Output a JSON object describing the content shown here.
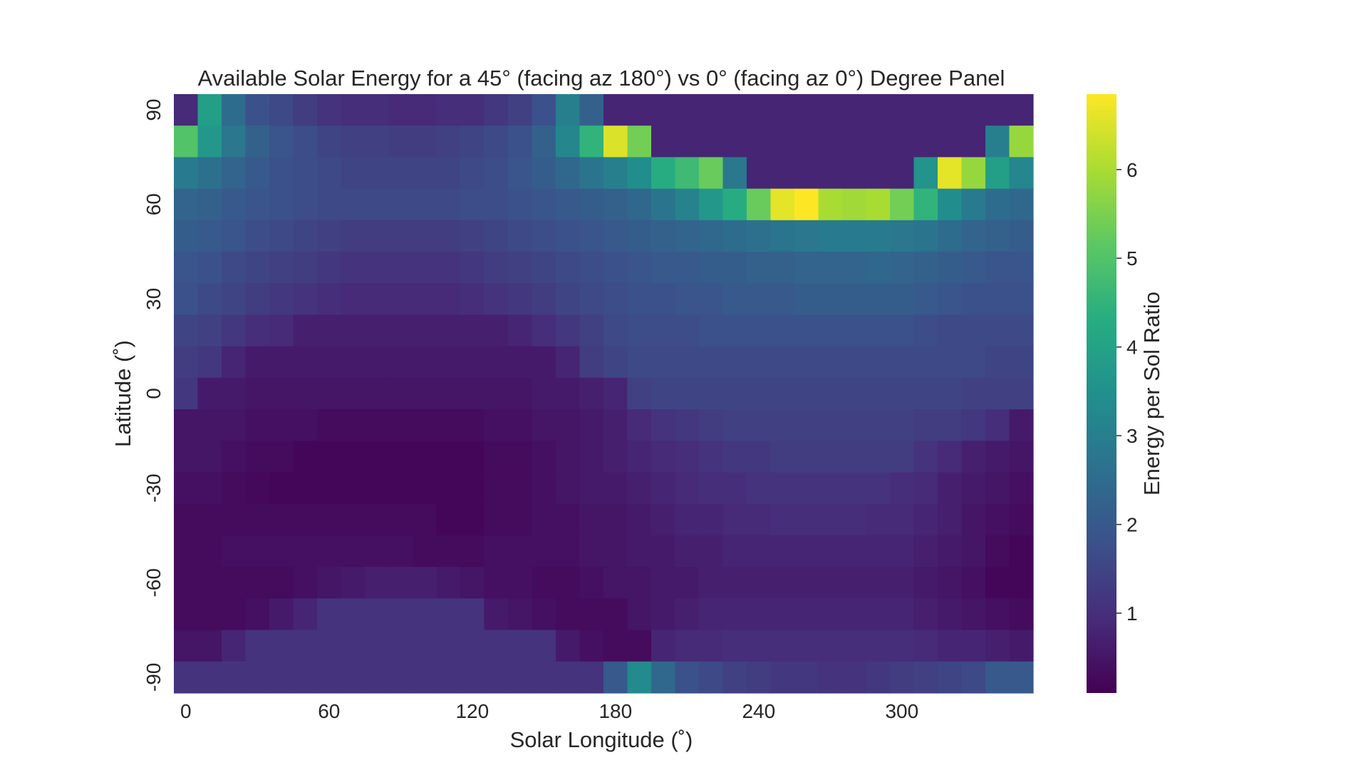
{
  "chart_data": {
    "type": "heatmap",
    "title": "Available Solar Energy for a 45° (facing az 180°) vs 0° (facing az 0°) Degree Panel",
    "xlabel": "Solar Longitude (˚)",
    "ylabel": "Latitude (˚)",
    "colorbar_label": "Energy per Sol Ratio",
    "colormap": "viridis",
    "color_range": [
      0.1,
      6.85
    ],
    "x_ticks": [
      0,
      60,
      120,
      180,
      240,
      300
    ],
    "y_ticks": [
      90,
      60,
      30,
      0,
      -30,
      -60,
      -90
    ],
    "colorbar_ticks": [
      1,
      2,
      3,
      4,
      5,
      6
    ],
    "x": [
      0,
      10,
      20,
      30,
      40,
      50,
      60,
      70,
      80,
      90,
      100,
      110,
      120,
      130,
      140,
      150,
      160,
      170,
      180,
      190,
      200,
      210,
      220,
      230,
      240,
      250,
      260,
      270,
      280,
      290,
      300,
      310,
      320,
      330,
      340,
      350
    ],
    "y": [
      90,
      80,
      70,
      60,
      50,
      40,
      30,
      20,
      10,
      0,
      -10,
      -20,
      -30,
      -40,
      -50,
      -60,
      -70,
      -80,
      -90
    ],
    "z": [
      [
        0.9,
        3.9,
        2.5,
        1.8,
        1.6,
        1.3,
        1.1,
        1.0,
        1.0,
        0.9,
        0.9,
        1.0,
        1.0,
        1.2,
        1.4,
        1.8,
        3.0,
        2.2,
        0.8,
        0.8,
        0.8,
        0.8,
        0.8,
        0.8,
        0.8,
        0.8,
        0.8,
        0.8,
        0.8,
        0.8,
        0.8,
        0.8,
        0.8,
        0.8,
        0.8,
        0.8
      ],
      [
        5.0,
        3.7,
        2.8,
        2.2,
        1.9,
        1.7,
        1.5,
        1.4,
        1.4,
        1.3,
        1.3,
        1.4,
        1.5,
        1.6,
        1.8,
        2.2,
        3.2,
        4.5,
        6.5,
        5.4,
        0.8,
        0.8,
        0.8,
        0.8,
        0.8,
        0.8,
        0.8,
        0.8,
        0.8,
        0.8,
        0.8,
        0.8,
        0.8,
        0.8,
        3.0,
        5.8
      ],
      [
        2.9,
        2.6,
        2.3,
        2.0,
        1.8,
        1.7,
        1.6,
        1.5,
        1.5,
        1.5,
        1.5,
        1.5,
        1.6,
        1.7,
        1.9,
        2.1,
        2.4,
        2.7,
        3.0,
        3.4,
        4.3,
        4.7,
        5.3,
        2.8,
        0.8,
        0.8,
        0.8,
        0.8,
        0.8,
        0.8,
        0.8,
        3.6,
        6.6,
        5.8,
        3.9,
        3.2
      ],
      [
        2.3,
        2.2,
        2.0,
        1.9,
        1.8,
        1.7,
        1.6,
        1.6,
        1.6,
        1.6,
        1.6,
        1.6,
        1.7,
        1.7,
        1.8,
        1.9,
        2.0,
        2.1,
        2.2,
        2.4,
        2.7,
        3.1,
        3.7,
        4.3,
        5.3,
        6.6,
        6.85,
        6.0,
        5.9,
        6.0,
        5.4,
        4.5,
        3.4,
        2.9,
        2.5,
        2.4
      ],
      [
        2.1,
        2.0,
        1.9,
        1.7,
        1.6,
        1.5,
        1.4,
        1.3,
        1.3,
        1.3,
        1.3,
        1.3,
        1.4,
        1.5,
        1.6,
        1.7,
        1.8,
        1.9,
        2.0,
        2.1,
        2.2,
        2.3,
        2.4,
        2.5,
        2.6,
        2.7,
        2.8,
        2.9,
        2.9,
        2.9,
        2.8,
        2.7,
        2.5,
        2.3,
        2.2,
        2.1
      ],
      [
        1.9,
        1.8,
        1.6,
        1.5,
        1.4,
        1.3,
        1.2,
        1.1,
        1.1,
        1.1,
        1.1,
        1.1,
        1.2,
        1.3,
        1.4,
        1.5,
        1.6,
        1.7,
        1.8,
        1.9,
        2.0,
        2.0,
        2.1,
        2.1,
        2.2,
        2.2,
        2.3,
        2.3,
        2.3,
        2.4,
        2.3,
        2.2,
        2.1,
        2.0,
        1.9,
        1.9
      ],
      [
        1.8,
        1.6,
        1.5,
        1.3,
        1.2,
        1.1,
        1.0,
        0.9,
        0.9,
        0.9,
        0.9,
        0.9,
        1.0,
        1.1,
        1.2,
        1.3,
        1.5,
        1.6,
        1.7,
        1.8,
        1.8,
        1.9,
        1.9,
        2.0,
        2.0,
        2.0,
        2.1,
        2.1,
        2.1,
        2.1,
        2.1,
        2.0,
        1.9,
        1.8,
        1.8,
        1.8
      ],
      [
        1.5,
        1.4,
        1.2,
        1.0,
        0.9,
        0.7,
        0.7,
        0.7,
        0.7,
        0.7,
        0.7,
        0.7,
        0.7,
        0.7,
        0.8,
        1.0,
        1.2,
        1.4,
        1.6,
        1.7,
        1.7,
        1.7,
        1.8,
        1.8,
        1.8,
        1.8,
        1.8,
        1.8,
        1.8,
        1.8,
        1.8,
        1.7,
        1.6,
        1.6,
        1.6,
        1.6
      ],
      [
        1.3,
        1.2,
        0.8,
        0.6,
        0.6,
        0.6,
        0.6,
        0.6,
        0.6,
        0.6,
        0.6,
        0.6,
        0.6,
        0.6,
        0.6,
        0.6,
        0.8,
        1.3,
        1.5,
        1.6,
        1.6,
        1.6,
        1.6,
        1.6,
        1.6,
        1.6,
        1.6,
        1.6,
        1.6,
        1.6,
        1.6,
        1.6,
        1.6,
        1.6,
        1.5,
        1.5
      ],
      [
        1.2,
        0.6,
        0.6,
        0.5,
        0.5,
        0.5,
        0.5,
        0.5,
        0.5,
        0.5,
        0.5,
        0.5,
        0.5,
        0.5,
        0.5,
        0.6,
        0.6,
        0.7,
        0.8,
        1.4,
        1.5,
        1.5,
        1.5,
        1.5,
        1.5,
        1.5,
        1.5,
        1.5,
        1.5,
        1.5,
        1.5,
        1.5,
        1.5,
        1.4,
        1.4,
        1.4
      ],
      [
        0.5,
        0.5,
        0.5,
        0.4,
        0.4,
        0.4,
        0.3,
        0.3,
        0.3,
        0.3,
        0.3,
        0.3,
        0.3,
        0.4,
        0.4,
        0.5,
        0.5,
        0.6,
        0.7,
        0.9,
        1.1,
        1.2,
        1.3,
        1.4,
        1.4,
        1.4,
        1.4,
        1.4,
        1.4,
        1.4,
        1.4,
        1.3,
        1.3,
        1.2,
        1.0,
        0.6
      ],
      [
        0.5,
        0.5,
        0.4,
        0.3,
        0.3,
        0.2,
        0.2,
        0.2,
        0.2,
        0.2,
        0.2,
        0.2,
        0.2,
        0.3,
        0.3,
        0.4,
        0.5,
        0.6,
        0.7,
        0.8,
        0.9,
        1.0,
        1.1,
        1.2,
        1.2,
        1.3,
        1.3,
        1.3,
        1.3,
        1.3,
        1.3,
        1.1,
        0.9,
        0.7,
        0.6,
        0.5
      ],
      [
        0.4,
        0.4,
        0.3,
        0.25,
        0.2,
        0.2,
        0.2,
        0.2,
        0.2,
        0.2,
        0.2,
        0.2,
        0.2,
        0.3,
        0.3,
        0.4,
        0.5,
        0.6,
        0.6,
        0.7,
        0.8,
        0.9,
        1.0,
        1.0,
        1.1,
        1.1,
        1.1,
        1.1,
        1.1,
        1.1,
        1.0,
        0.9,
        0.7,
        0.6,
        0.5,
        0.4
      ],
      [
        0.3,
        0.3,
        0.3,
        0.3,
        0.3,
        0.3,
        0.3,
        0.3,
        0.3,
        0.3,
        0.3,
        0.2,
        0.2,
        0.3,
        0.3,
        0.4,
        0.4,
        0.5,
        0.5,
        0.6,
        0.7,
        0.8,
        0.8,
        0.9,
        0.9,
        1.0,
        1.0,
        1.0,
        1.0,
        0.9,
        0.9,
        0.8,
        0.7,
        0.5,
        0.4,
        0.3
      ],
      [
        0.3,
        0.3,
        0.4,
        0.4,
        0.4,
        0.4,
        0.4,
        0.4,
        0.4,
        0.4,
        0.3,
        0.3,
        0.3,
        0.4,
        0.4,
        0.4,
        0.4,
        0.5,
        0.5,
        0.6,
        0.6,
        0.7,
        0.7,
        0.8,
        0.8,
        0.8,
        0.8,
        0.8,
        0.8,
        0.8,
        0.8,
        0.7,
        0.6,
        0.5,
        0.3,
        0.2
      ],
      [
        0.3,
        0.3,
        0.3,
        0.3,
        0.3,
        0.4,
        0.5,
        0.6,
        0.7,
        0.7,
        0.7,
        0.6,
        0.5,
        0.4,
        0.4,
        0.3,
        0.3,
        0.4,
        0.5,
        0.5,
        0.6,
        0.6,
        0.7,
        0.7,
        0.7,
        0.7,
        0.7,
        0.7,
        0.7,
        0.7,
        0.7,
        0.6,
        0.5,
        0.4,
        0.2,
        0.2
      ],
      [
        0.3,
        0.3,
        0.3,
        0.4,
        0.6,
        0.8,
        1.1,
        1.1,
        1.1,
        1.1,
        1.1,
        1.1,
        1.1,
        0.6,
        0.5,
        0.4,
        0.3,
        0.3,
        0.3,
        0.5,
        0.6,
        0.7,
        0.8,
        0.8,
        0.8,
        0.8,
        0.8,
        0.8,
        0.8,
        0.8,
        0.8,
        0.7,
        0.6,
        0.5,
        0.4,
        0.3
      ],
      [
        0.5,
        0.5,
        0.8,
        1.1,
        1.1,
        1.1,
        1.1,
        1.1,
        1.1,
        1.1,
        1.1,
        1.1,
        1.1,
        1.1,
        1.1,
        1.1,
        0.6,
        0.4,
        0.3,
        0.3,
        0.8,
        0.9,
        0.9,
        1.0,
        1.0,
        1.0,
        1.0,
        1.0,
        1.0,
        1.0,
        1.0,
        0.9,
        0.8,
        0.8,
        0.7,
        0.6
      ],
      [
        1.1,
        1.1,
        1.1,
        1.1,
        1.1,
        1.1,
        1.1,
        1.1,
        1.1,
        1.1,
        1.1,
        1.1,
        1.1,
        1.1,
        1.1,
        1.1,
        1.1,
        1.1,
        2.0,
        3.3,
        2.4,
        1.8,
        1.6,
        1.4,
        1.3,
        1.2,
        1.2,
        1.1,
        1.1,
        1.2,
        1.3,
        1.4,
        1.5,
        1.6,
        2.0,
        2.0
      ]
    ]
  }
}
